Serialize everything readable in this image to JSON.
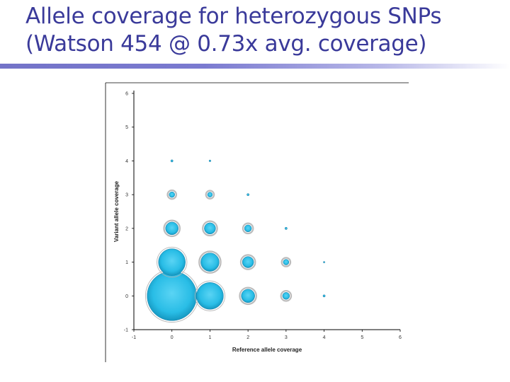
{
  "title": {
    "line1": "Allele coverage for heterozygous SNPs",
    "line2": "(Watson 454 @ 0.73x avg. coverage)"
  },
  "colors": {
    "title": "#3a3a9a",
    "bubble_fill": "#29bde6",
    "bubble_ring": "#b0b0b0",
    "rule": "#7373c8"
  },
  "chart_data": {
    "type": "scatter",
    "subtype": "bubble",
    "title": "",
    "xlabel": "Reference allele coverage",
    "ylabel": "Variant allele coverage",
    "xlim": [
      -1,
      6
    ],
    "ylim": [
      -1,
      6
    ],
    "xticks": [
      -1,
      0,
      1,
      2,
      3,
      4,
      5,
      6
    ],
    "yticks": [
      -1,
      0,
      1,
      2,
      3,
      4,
      5,
      6
    ],
    "grid": false,
    "legend": "none",
    "bubbles": [
      {
        "x": 0,
        "y": 0,
        "size": 35
      },
      {
        "x": 0,
        "y": 1,
        "size": 19
      },
      {
        "x": 0,
        "y": 2,
        "size": 9
      },
      {
        "x": 0,
        "y": 3,
        "size": 4
      },
      {
        "x": 0,
        "y": 4,
        "size": 1.5
      },
      {
        "x": 1,
        "y": 0,
        "size": 19
      },
      {
        "x": 1,
        "y": 1,
        "size": 13
      },
      {
        "x": 1,
        "y": 2,
        "size": 8
      },
      {
        "x": 1,
        "y": 3,
        "size": 3.5
      },
      {
        "x": 1,
        "y": 4,
        "size": 1.2
      },
      {
        "x": 2,
        "y": 0,
        "size": 9.5
      },
      {
        "x": 2,
        "y": 1,
        "size": 8
      },
      {
        "x": 2,
        "y": 2,
        "size": 5
      },
      {
        "x": 2,
        "y": 3,
        "size": 1.5
      },
      {
        "x": 3,
        "y": 0,
        "size": 5
      },
      {
        "x": 3,
        "y": 1,
        "size": 4
      },
      {
        "x": 3,
        "y": 2,
        "size": 1.5
      },
      {
        "x": 4,
        "y": 0,
        "size": 1.5
      },
      {
        "x": 4,
        "y": 1,
        "size": 1
      }
    ]
  }
}
